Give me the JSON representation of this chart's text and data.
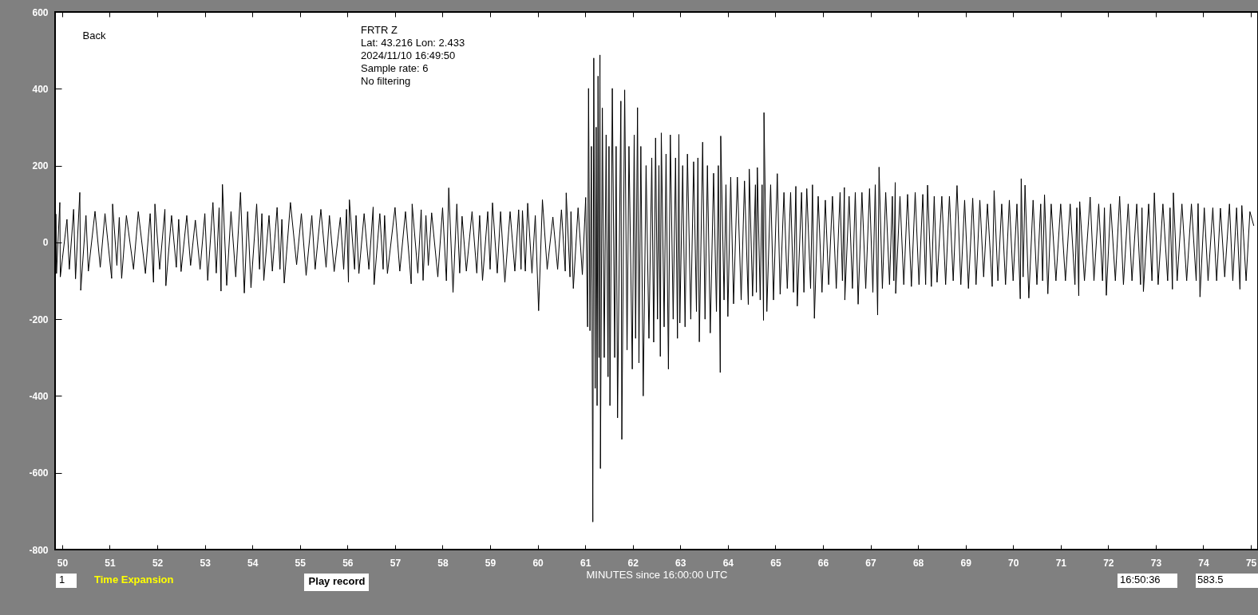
{
  "chart_data": {
    "type": "line",
    "xlabel": "MINUTES since 16:00:00 UTC",
    "annotations": [
      "FRTR  Z",
      "Lat: 43.216 Lon: 2.433",
      "2024/11/10 16:49:50",
      "Sample rate: 6",
      "No filtering",
      "Back",
      "1",
      "Time Expansion",
      "Play record",
      "16:50:36",
      "583.5"
    ],
    "xlim": [
      49.85,
      75.15
    ],
    "ylim": [
      -800,
      600
    ],
    "xticks": [
      50,
      51,
      52,
      53,
      54,
      55,
      56,
      57,
      58,
      59,
      60,
      61,
      62,
      63,
      64,
      65,
      66,
      67,
      68,
      69,
      70,
      71,
      72,
      73,
      74,
      75
    ],
    "yticks": [
      -800,
      -600,
      -400,
      -200,
      0,
      200,
      400,
      600
    ],
    "marker": "none",
    "line_style": "solid",
    "x": [
      49.87,
      49.88,
      49.95,
      49.96,
      50.1,
      50.15,
      50.24,
      50.28,
      50.37,
      50.39,
      50.5,
      50.55,
      50.69,
      50.8,
      50.9,
      51.04,
      51.06,
      51.15,
      51.2,
      51.25,
      51.35,
      51.5,
      51.6,
      51.75,
      51.85,
      51.92,
      51.95,
      52.05,
      52.16,
      52.18,
      52.3,
      52.4,
      52.45,
      52.5,
      52.62,
      52.7,
      52.8,
      52.9,
      53.0,
      53.06,
      53.17,
      53.24,
      53.3,
      53.34,
      53.37,
      53.46,
      53.55,
      53.65,
      53.75,
      53.83,
      53.9,
      53.97,
      54.09,
      54.15,
      54.2,
      54.24,
      54.35,
      54.42,
      54.52,
      54.58,
      54.62,
      54.67,
      54.8,
      54.93,
      55.03,
      55.13,
      55.25,
      55.32,
      55.44,
      55.55,
      55.62,
      55.72,
      55.85,
      55.92,
      55.98,
      56.02,
      56.04,
      56.15,
      56.18,
      56.24,
      56.35,
      56.45,
      56.54,
      56.56,
      56.68,
      56.75,
      56.78,
      56.84,
      57.0,
      57.1,
      57.22,
      57.34,
      57.36,
      57.48,
      57.55,
      57.59,
      57.65,
      57.7,
      57.77,
      57.9,
      58.0,
      58.08,
      58.13,
      58.22,
      58.3,
      58.36,
      58.41,
      58.5,
      58.62,
      58.72,
      58.78,
      58.84,
      58.95,
      59.0,
      59.05,
      59.15,
      59.22,
      59.31,
      59.42,
      59.52,
      59.6,
      59.65,
      59.68,
      59.74,
      59.79,
      59.88,
      59.95,
      60.02,
      60.1,
      60.2,
      60.32,
      60.42,
      60.5,
      60.58,
      60.6,
      60.68,
      60.7,
      60.75,
      60.85,
      60.94,
      61.01,
      61.05,
      61.07,
      61.1,
      61.13,
      61.16,
      61.18,
      61.21,
      61.23,
      61.25,
      61.27,
      61.29,
      61.31,
      61.32,
      61.36,
      61.4,
      61.44,
      61.48,
      61.5,
      61.52,
      61.57,
      61.62,
      61.65,
      61.68,
      61.75,
      61.77,
      61.83,
      61.88,
      61.92,
      61.99,
      62.03,
      62.06,
      62.1,
      62.13,
      62.17,
      62.22,
      62.28,
      62.34,
      62.4,
      62.44,
      62.48,
      62.52,
      62.55,
      62.58,
      62.6,
      62.66,
      62.7,
      62.75,
      62.79,
      62.85,
      62.9,
      62.94,
      62.97,
      62.99,
      63.05,
      63.1,
      63.15,
      63.22,
      63.28,
      63.34,
      63.37,
      63.4,
      63.47,
      63.52,
      63.57,
      63.63,
      63.7,
      63.76,
      63.8,
      63.84,
      63.85,
      63.92,
      63.96,
      64.0,
      64.06,
      64.12,
      64.2,
      64.28,
      64.35,
      64.43,
      64.45,
      64.52,
      64.58,
      64.6,
      64.62,
      64.68,
      64.72,
      64.75,
      64.76,
      64.82,
      64.9,
      64.96,
      65.04,
      65.1,
      65.18,
      65.25,
      65.32,
      65.38,
      65.43,
      65.46,
      65.55,
      65.6,
      65.66,
      65.74,
      65.78,
      65.82,
      65.9,
      65.98,
      66.05,
      66.12,
      66.2,
      66.28,
      66.36,
      66.41,
      66.45,
      66.46,
      66.55,
      66.62,
      66.68,
      66.74,
      66.82,
      66.9,
      66.98,
      67.05,
      67.1,
      67.15,
      67.18,
      67.25,
      67.32,
      67.4,
      67.46,
      67.49,
      67.52,
      67.53,
      67.62,
      67.7,
      67.78,
      67.86,
      67.94,
      68.02,
      68.1,
      68.16,
      68.2,
      68.28,
      68.34,
      68.4,
      68.5,
      68.58,
      68.66,
      68.74,
      68.82,
      68.9,
      68.98,
      69.06,
      69.15,
      69.22,
      69.3,
      69.38,
      69.46,
      69.56,
      69.6,
      69.68,
      69.76,
      69.84,
      69.92,
      70.0,
      70.08,
      70.15,
      70.17,
      70.21,
      70.25,
      70.33,
      70.42,
      70.5,
      70.58,
      70.62,
      70.66,
      70.73,
      70.8,
      70.9,
      71.0,
      71.1,
      71.2,
      71.3,
      71.34,
      71.38,
      71.4,
      71.5,
      71.62,
      71.7,
      71.8,
      71.88,
      71.92,
      71.96,
      72.05,
      72.15,
      72.24,
      72.32,
      72.42,
      72.5,
      72.6,
      72.68,
      72.71,
      72.74,
      72.85,
      72.92,
      72.97,
      73.05,
      73.15,
      73.25,
      73.3,
      73.35,
      73.37,
      73.45,
      73.55,
      73.65,
      73.75,
      73.85,
      73.89,
      73.93,
      74.02,
      74.1,
      74.2,
      74.28,
      74.36,
      74.45,
      74.55,
      74.62,
      74.7,
      74.77,
      74.81,
      74.9,
      74.98,
      75.06
    ],
    "series": [
      {
        "color": "#000000",
        "values": [
          73,
          -81,
          104,
          -90,
          60,
          -70,
          86,
          -95,
          130,
          -125,
          70,
          -75,
          81,
          -65,
          75,
          -94,
          100,
          -60,
          65,
          -94,
          70,
          -70,
          80,
          -81,
          75,
          -104,
          100,
          -70,
          86,
          -113,
          70,
          -65,
          60,
          -76,
          70,
          -60,
          58,
          -70,
          75,
          -99,
          104,
          -80,
          90,
          -127,
          151,
          -112,
          80,
          -90,
          130,
          -132,
          80,
          -118,
          100,
          -70,
          75,
          -99,
          70,
          -75,
          91,
          -70,
          60,
          -106,
          104,
          -58,
          75,
          -86,
          70,
          -70,
          86,
          -65,
          70,
          -76,
          65,
          -70,
          86,
          -104,
          111,
          -70,
          70,
          -81,
          75,
          -70,
          92,
          -110,
          75,
          -70,
          70,
          -81,
          91,
          -75,
          80,
          -108,
          100,
          -80,
          85,
          -99,
          70,
          -60,
          77,
          -90,
          90,
          -100,
          142,
          -130,
          100,
          -80,
          68,
          -75,
          80,
          -80,
          70,
          -99,
          80,
          -70,
          103,
          -80,
          80,
          -104,
          80,
          -75,
          85,
          -70,
          83,
          -75,
          102,
          -80,
          70,
          -178,
          111,
          -70,
          66,
          -70,
          85,
          -75,
          129,
          -90,
          80,
          -120,
          90,
          -84,
          117,
          -220,
          401,
          -230,
          250,
          -728,
          480,
          -380,
          300,
          -425,
          433,
          -300,
          488,
          -589,
          350,
          -300,
          280,
          -350,
          250,
          -425,
          401,
          -300,
          250,
          -457,
          368,
          -513,
          397,
          -280,
          250,
          -330,
          280,
          -250,
          351,
          -314,
          250,
          -400,
          200,
          -250,
          220,
          -260,
          272,
          -200,
          200,
          -297,
          285,
          -220,
          230,
          -330,
          280,
          -200,
          220,
          -250,
          281,
          -210,
          200,
          -220,
          230,
          -200,
          210,
          -180,
          220,
          -259,
          261,
          -200,
          200,
          -236,
          180,
          -180,
          200,
          -339,
          277,
          -150,
          150,
          -193,
          170,
          -160,
          170,
          -150,
          160,
          -162,
          191,
          -140,
          150,
          -130,
          195,
          -150,
          150,
          -203,
          338,
          -180,
          150,
          -150,
          179,
          -135,
          130,
          -120,
          130,
          -130,
          146,
          -166,
          130,
          -130,
          140,
          -120,
          150,
          -198,
          120,
          -130,
          110,
          -110,
          120,
          -120,
          130,
          -100,
          143,
          -150,
          120,
          -120,
          130,
          -161,
          130,
          -120,
          140,
          -130,
          150,
          -189,
          196,
          -120,
          130,
          -110,
          120,
          -100,
          156,
          -133,
          120,
          -110,
          125,
          -115,
          130,
          -110,
          125,
          -110,
          149,
          -115,
          120,
          -104,
          120,
          -110,
          120,
          -100,
          148,
          -110,
          110,
          -120,
          115,
          -110,
          110,
          -90,
          100,
          -115,
          135,
          -100,
          100,
          -110,
          110,
          -100,
          100,
          -147,
          166,
          -90,
          149,
          -145,
          110,
          -110,
          100,
          -100,
          124,
          -134,
          100,
          -100,
          100,
          -100,
          100,
          -110,
          90,
          -139,
          106,
          -100,
          118,
          -100,
          100,
          -100,
          90,
          -138,
          100,
          -100,
          120,
          -110,
          100,
          -100,
          100,
          -110,
          90,
          -128,
          100,
          -100,
          129,
          -110,
          100,
          -100,
          90,
          -122,
          129,
          -100,
          100,
          -100,
          100,
          -100,
          101,
          -142,
          90,
          -100,
          90,
          -100,
          89,
          -90,
          100,
          -100,
          90,
          -122,
          96,
          -100,
          80,
          44
        ]
      }
    ]
  }
}
